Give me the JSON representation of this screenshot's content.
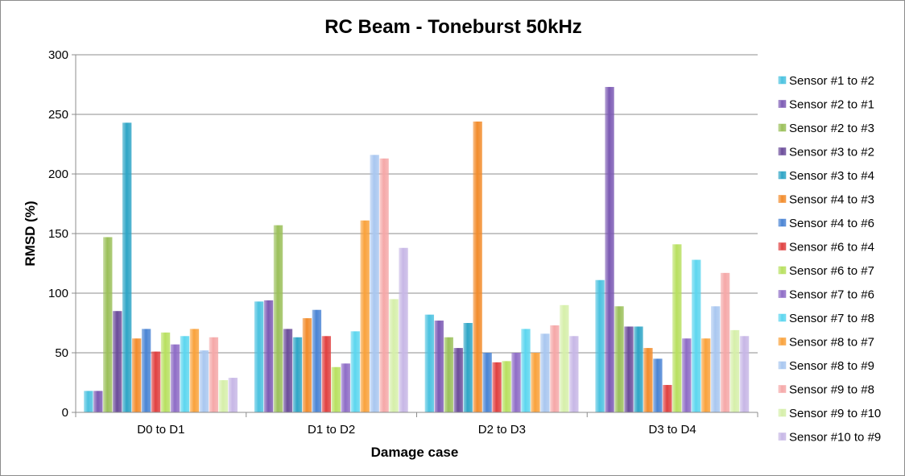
{
  "chart_data": {
    "type": "bar",
    "title": "RC Beam - Toneburst 50kHz",
    "xlabel": "Damage case",
    "ylabel": "RMSD (%)",
    "ylim": [
      0,
      300
    ],
    "yticks": [
      0,
      50,
      100,
      150,
      200,
      250,
      300
    ],
    "grid": true,
    "legend_position": "right",
    "categories": [
      "D0 to D1",
      "D1 to D2",
      "D2 to D3",
      "D3 to D4"
    ],
    "series": [
      {
        "name": "Sensor #1 to #2",
        "color": "#4bc2e0",
        "values": [
          18,
          93,
          82,
          111
        ]
      },
      {
        "name": "Sensor #2 to #1",
        "color": "#7c5ab4",
        "values": [
          18,
          94,
          77,
          273
        ]
      },
      {
        "name": "Sensor #2 to #3",
        "color": "#9bc05a",
        "values": [
          147,
          157,
          63,
          89
        ]
      },
      {
        "name": "Sensor #3 to #2",
        "color": "#6b4c9a",
        "values": [
          85,
          70,
          54,
          72
        ]
      },
      {
        "name": "Sensor #3 to #4",
        "color": "#2ea5c6",
        "values": [
          243,
          63,
          75,
          72
        ]
      },
      {
        "name": "Sensor #4 to #3",
        "color": "#f28c2c",
        "values": [
          62,
          79,
          244,
          54
        ]
      },
      {
        "name": "Sensor #4 to #6",
        "color": "#4a84d4",
        "values": [
          70,
          86,
          50,
          45
        ]
      },
      {
        "name": "Sensor #6 to #4",
        "color": "#e04040",
        "values": [
          51,
          64,
          42,
          23
        ]
      },
      {
        "name": "Sensor #6 to #7",
        "color": "#b8e060",
        "values": [
          67,
          38,
          43,
          141
        ]
      },
      {
        "name": "Sensor #7 to #6",
        "color": "#8e6cc6",
        "values": [
          57,
          41,
          50,
          62
        ]
      },
      {
        "name": "Sensor #7 to #8",
        "color": "#5cd6ef",
        "values": [
          64,
          68,
          70,
          128
        ]
      },
      {
        "name": "Sensor #8 to #7",
        "color": "#f9a23c",
        "values": [
          70,
          161,
          50,
          62
        ]
      },
      {
        "name": "Sensor #8 to #9",
        "color": "#a9c7f0",
        "values": [
          52,
          216,
          66,
          89
        ]
      },
      {
        "name": "Sensor #9 to #8",
        "color": "#f5a8a8",
        "values": [
          63,
          213,
          73,
          117
        ]
      },
      {
        "name": "Sensor #9 to #10",
        "color": "#d6efaa",
        "values": [
          27,
          95,
          90,
          69
        ]
      },
      {
        "name": "Sensor #10 to #9",
        "color": "#c7b7e6",
        "values": [
          29,
          138,
          64,
          64
        ]
      }
    ]
  }
}
